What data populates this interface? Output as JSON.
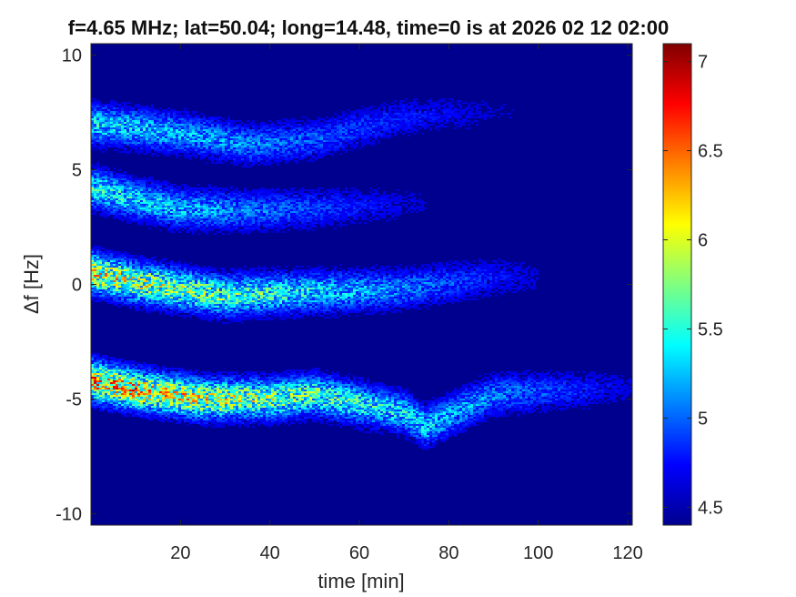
{
  "chart_data": {
    "type": "heatmap",
    "title": "f=4.65 MHz;  lat=50.04; long=14.48, time=0 is at 2026 02 12 02:00",
    "xlabel": "time [min]",
    "ylabel": "Δf [Hz]",
    "xlim": [
      0,
      121
    ],
    "ylim": [
      -10.5,
      10.5
    ],
    "x_ticks": [
      20,
      40,
      60,
      80,
      100,
      120
    ],
    "y_ticks": [
      10,
      5,
      0,
      -5,
      -10
    ],
    "colorbar": {
      "colormap": "jet",
      "range": [
        4.4,
        7.1
      ],
      "ticks": [
        4.5,
        5,
        5.5,
        6,
        6.5,
        7
      ]
    },
    "background_value": 4.5,
    "bands": [
      {
        "x": [
          0,
          20,
          35,
          50,
          60,
          70,
          90
        ],
        "y": [
          7.0,
          6.6,
          6.1,
          6.3,
          6.8,
          7.3,
          7.5
        ],
        "peak_value": 5.5,
        "end": 95
      },
      {
        "x": [
          0,
          10,
          20,
          35,
          50,
          60,
          70
        ],
        "y": [
          4.2,
          3.7,
          3.3,
          3.2,
          3.3,
          3.4,
          3.5
        ],
        "peak_value": 5.6,
        "end": 75
      },
      {
        "x": [
          0,
          10,
          20,
          30,
          40,
          55,
          70,
          90
        ],
        "y": [
          0.5,
          0.1,
          -0.2,
          -0.5,
          -0.4,
          -0.3,
          -0.2,
          0.3
        ],
        "peak_value": 6.3,
        "end": 100
      },
      {
        "x": [
          0,
          10,
          25,
          40,
          50,
          60,
          70,
          75,
          90,
          120
        ],
        "y": [
          -4.2,
          -4.6,
          -5.0,
          -5.0,
          -4.8,
          -5.2,
          -5.6,
          -6.2,
          -4.8,
          -4.5
        ],
        "peak_value": 6.6,
        "end": 121
      }
    ]
  }
}
